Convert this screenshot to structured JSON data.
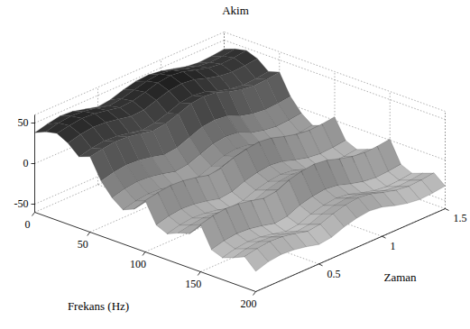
{
  "chart_data": {
    "type": "surface",
    "title": "Akim",
    "x_label": "Frekans (Hz)",
    "y_label": "Zaman",
    "x": [
      0,
      10,
      20,
      30,
      40,
      50,
      60,
      70,
      80,
      90,
      100,
      110,
      120,
      130,
      140,
      150,
      160,
      170,
      180,
      190,
      200
    ],
    "y": [
      0,
      0.1,
      0.2,
      0.3,
      0.4,
      0.5,
      0.6,
      0.7,
      0.8,
      0.9,
      1.0,
      1.1,
      1.2,
      1.3,
      1.4,
      1.5
    ],
    "z": [
      [
        38,
        44,
        47,
        40,
        28,
        33,
        8,
        -8,
        -18,
        -12,
        3,
        -22,
        -28,
        -22,
        -18,
        -2,
        -28,
        -33,
        -28,
        -22,
        -35
      ],
      [
        42,
        48,
        50,
        44,
        32,
        36,
        12,
        -4,
        -14,
        -9,
        6,
        -18,
        -24,
        -19,
        -14,
        2,
        -24,
        -29,
        -24,
        -19,
        -30
      ],
      [
        45,
        50,
        52,
        46,
        34,
        38,
        14,
        -2,
        -12,
        -8,
        8,
        -16,
        -22,
        -17,
        -12,
        4,
        -22,
        -27,
        -22,
        -17,
        -28
      ],
      [
        44,
        49,
        51,
        45,
        33,
        37,
        13,
        -3,
        -13,
        -9,
        7,
        -17,
        -23,
        -18,
        -13,
        3,
        -23,
        -28,
        -23,
        -18,
        -29
      ],
      [
        40,
        46,
        48,
        42,
        30,
        34,
        10,
        -6,
        -16,
        -11,
        4,
        -20,
        -26,
        -21,
        -16,
        0,
        -26,
        -31,
        -26,
        -21,
        -32
      ],
      [
        36,
        42,
        45,
        39,
        27,
        31,
        6,
        -10,
        -20,
        -14,
        0,
        -24,
        -30,
        -25,
        -20,
        -4,
        -30,
        -35,
        -30,
        -25,
        -36
      ],
      [
        38,
        44,
        46,
        40,
        29,
        33,
        8,
        -8,
        -18,
        -12,
        2,
        -22,
        -28,
        -23,
        -18,
        -2,
        -28,
        -33,
        -28,
        -23,
        -34
      ],
      [
        43,
        48,
        50,
        45,
        34,
        38,
        14,
        -2,
        -12,
        -7,
        8,
        -16,
        -22,
        -17,
        -12,
        5,
        -21,
        -27,
        -22,
        -17,
        -28
      ],
      [
        47,
        52,
        55,
        50,
        40,
        44,
        20,
        4,
        -6,
        -2,
        12,
        -12,
        -18,
        -13,
        -8,
        9,
        -17,
        -23,
        -18,
        -13,
        -24
      ],
      [
        48,
        54,
        57,
        52,
        42,
        46,
        22,
        6,
        -4,
        0,
        14,
        -10,
        -16,
        -11,
        -6,
        11,
        -15,
        -21,
        -16,
        -11,
        -22
      ],
      [
        46,
        52,
        55,
        50,
        40,
        44,
        20,
        4,
        -6,
        -2,
        12,
        -12,
        -18,
        -13,
        -8,
        9,
        -17,
        -23,
        -18,
        -13,
        -24
      ],
      [
        42,
        47,
        50,
        45,
        34,
        38,
        13,
        -3,
        -13,
        -8,
        7,
        -17,
        -23,
        -18,
        -13,
        4,
        -22,
        -28,
        -23,
        -18,
        -29
      ],
      [
        38,
        43,
        46,
        41,
        30,
        34,
        9,
        -7,
        -17,
        -12,
        3,
        -21,
        -27,
        -22,
        -17,
        0,
        -26,
        -32,
        -27,
        -22,
        -33
      ],
      [
        36,
        41,
        44,
        39,
        28,
        32,
        7,
        -9,
        -19,
        -14,
        1,
        -23,
        -29,
        -24,
        -19,
        -2,
        -28,
        -34,
        -29,
        -24,
        -35
      ],
      [
        37,
        42,
        45,
        40,
        29,
        33,
        8,
        -8,
        -18,
        -13,
        2,
        -22,
        -28,
        -23,
        -18,
        -1,
        -27,
        -33,
        -28,
        -23,
        -34
      ],
      [
        39,
        44,
        47,
        42,
        31,
        35,
        10,
        -6,
        -16,
        -11,
        4,
        -20,
        -26,
        -21,
        -16,
        1,
        -25,
        -31,
        -26,
        -21,
        -32
      ]
    ],
    "xlim": [
      0,
      200
    ],
    "ylim": [
      0,
      1.5
    ],
    "zlim": [
      -60,
      60
    ],
    "xticks": [
      0,
      50,
      100,
      150,
      200
    ],
    "yticks": [
      0.5,
      1,
      1.5
    ],
    "zticks": [
      -50,
      0,
      50
    ],
    "grid": true
  }
}
